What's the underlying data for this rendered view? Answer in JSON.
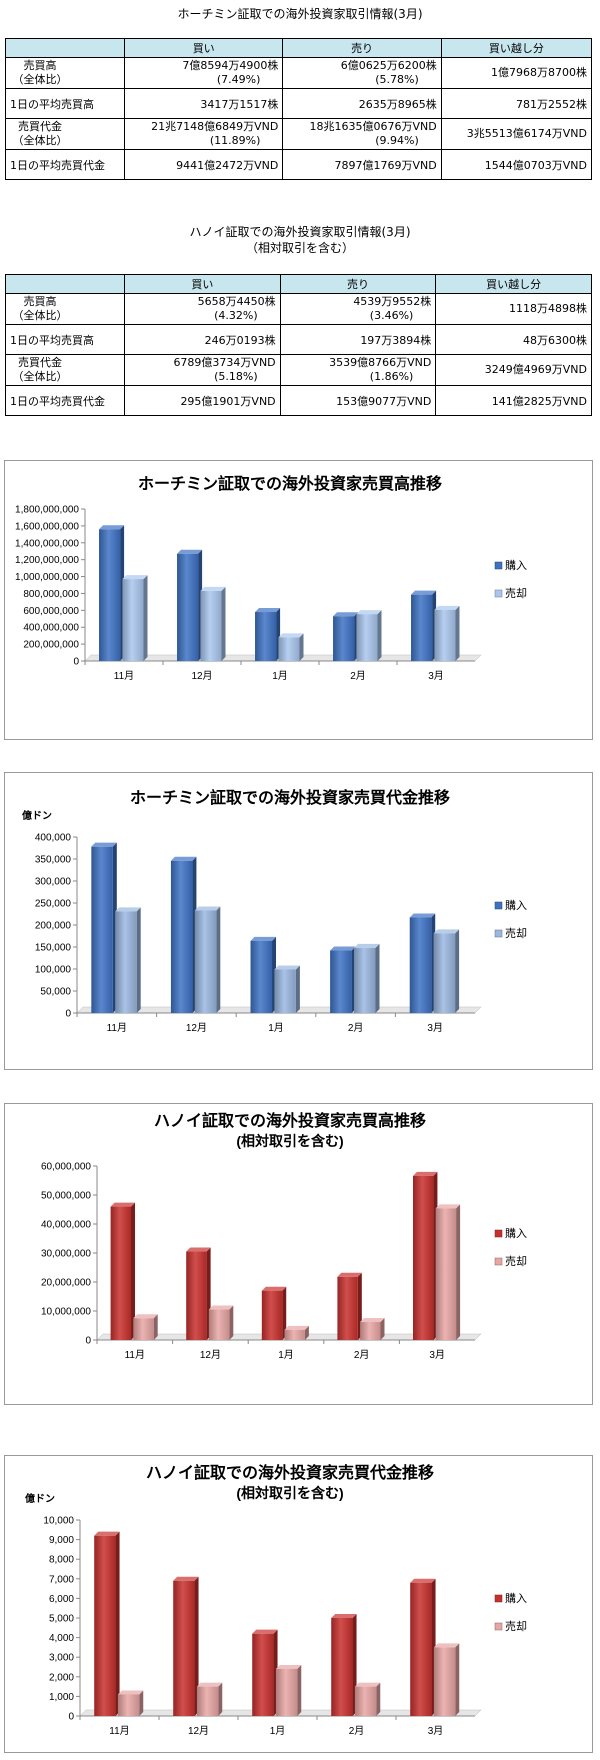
{
  "hcm_table": {
    "title": "ホーチミン証取での海外投資家取引情報(3月)",
    "headers": [
      "買い",
      "売り",
      "買い越し分"
    ],
    "rows": [
      {
        "label1": "売買高",
        "label2": "（全体比）",
        "buy1": "7億8594万4900株",
        "buy2": "(7.49%)",
        "sell1": "6億0625万6200株",
        "sell2": "(5.78%)",
        "net": "1億7968万8700株"
      },
      {
        "label1": "1日の平均売買高",
        "buy1": "3417万1517株",
        "sell1": "2635万8965株",
        "net": "781万2552株"
      },
      {
        "label1": "売買代金",
        "label2": "（全体比）",
        "buy1": "21兆7148億6849万VND",
        "buy2": "(11.89%)",
        "sell1": "18兆1635億0676万VND",
        "sell2": "(9.94%)",
        "net": "3兆5513億6174万VND"
      },
      {
        "label1": "1日の平均売買代金",
        "buy1": "9441億2472万VND",
        "sell1": "7897億1769万VND",
        "net": "1544億0703万VND"
      }
    ]
  },
  "hn_table": {
    "title": "ハノイ証取での海外投資家取引情報(3月)",
    "subtitle": "（相対取引を含む）",
    "headers": [
      "買い",
      "売り",
      "買い越し分"
    ],
    "rows": [
      {
        "label1": "売買高",
        "label2": "（全体比）",
        "buy1": "5658万4450株",
        "buy2": "(4.32%)",
        "sell1": "4539万9552株",
        "sell2": "(3.46%)",
        "net": "1118万4898株"
      },
      {
        "label1": "1日の平均売買高",
        "buy1": "246万0193株",
        "sell1": "197万3894株",
        "net": "48万6300株"
      },
      {
        "label1": "売買代金",
        "label2": "（全体比）",
        "buy1": "6789億3734万VND",
        "buy2": "(5.18%)",
        "sell1": "3539億8766万VND",
        "sell2": "(1.86%)",
        "net": "3249億4969万VND"
      },
      {
        "label1": "1日の平均売買代金",
        "buy1": "295億1901万VND",
        "sell1": "153億9077万VND",
        "net": "141億2825万VND"
      }
    ]
  },
  "chart_data": [
    {
      "type": "bar",
      "title": "ホーチミン証取での海外投資家売買高推移",
      "categories": [
        "11月",
        "12月",
        "1月",
        "2月",
        "3月"
      ],
      "series": [
        {
          "name": "購入",
          "values": [
            1560000000,
            1270000000,
            580000000,
            530000000,
            786000000
          ],
          "color": "#3d72c4"
        },
        {
          "name": "売却",
          "values": [
            970000000,
            830000000,
            280000000,
            555000000,
            606000000
          ],
          "color": "#a9c7ee"
        }
      ],
      "ylim": [
        0,
        1800000000
      ],
      "yticks": [
        "0",
        "200,000,000",
        "400,000,000",
        "600,000,000",
        "800,000,000",
        "1,000,000,000",
        "1,200,000,000",
        "1,400,000,000",
        "1,600,000,000",
        "1,800,000,000"
      ],
      "ylabel": "",
      "legend": "right",
      "grid": false
    },
    {
      "type": "bar",
      "title": "ホーチミン証取での海外投資家売買代金推移",
      "categories": [
        "11月",
        "12月",
        "1月",
        "2月",
        "3月"
      ],
      "series": [
        {
          "name": "購入",
          "values": [
            378000,
            346000,
            164000,
            142000,
            217000
          ],
          "color": "#3d72c4"
        },
        {
          "name": "売却",
          "values": [
            231000,
            233000,
            99000,
            148000,
            181000
          ],
          "color": "#9ab7e0"
        }
      ],
      "ylim": [
        0,
        400000
      ],
      "yticks": [
        "0",
        "50,000",
        "100,000",
        "150,000",
        "200,000",
        "250,000",
        "300,000",
        "350,000",
        "400,000"
      ],
      "ylabel": "億ドン",
      "legend": "right",
      "grid": false
    },
    {
      "type": "bar",
      "title": "ハノイ証取での海外投資家売買高推移",
      "subtitle": "(相対取引を含む)",
      "categories": [
        "11月",
        "12月",
        "1月",
        "2月",
        "3月"
      ],
      "series": [
        {
          "name": "購入",
          "values": [
            46000000,
            30500000,
            17000000,
            21800000,
            56600000
          ],
          "color": "#c8302e"
        },
        {
          "name": "売却",
          "values": [
            7500000,
            10500000,
            3500000,
            6200000,
            45400000
          ],
          "color": "#e7a5a3"
        }
      ],
      "ylim": [
        0,
        60000000
      ],
      "yticks": [
        "0",
        "10,000,000",
        "20,000,000",
        "30,000,000",
        "40,000,000",
        "50,000,000",
        "60,000,000"
      ],
      "ylabel": "",
      "legend": "right",
      "grid": false
    },
    {
      "type": "bar",
      "title": "ハノイ証取での海外投資家売買代金推移",
      "subtitle": "(相対取引を含む)",
      "categories": [
        "11月",
        "12月",
        "1月",
        "2月",
        "3月"
      ],
      "series": [
        {
          "name": "購入",
          "values": [
            9200,
            6900,
            4200,
            5000,
            6800
          ],
          "color": "#c8302e"
        },
        {
          "name": "売却",
          "values": [
            1100,
            1500,
            2400,
            1500,
            3500
          ],
          "color": "#e7a5a3"
        }
      ],
      "ylim": [
        0,
        10000
      ],
      "yticks": [
        "0",
        "1,000",
        "2,000",
        "3,000",
        "4,000",
        "5,000",
        "6,000",
        "7,000",
        "8,000",
        "9,000",
        "10,000"
      ],
      "ylabel": "億ドン",
      "legend": "right",
      "grid": false
    }
  ]
}
